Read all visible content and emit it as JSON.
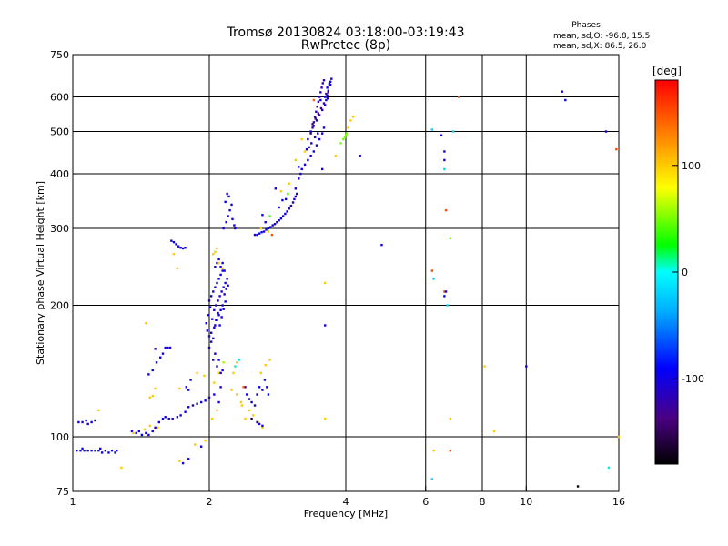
{
  "chart_data": {
    "type": "scatter",
    "title": "Tromsø 20130824 03:18:00-03:19:43",
    "subtitle": "RwPretec (8p)",
    "xlabel": "Frequency [MHz]",
    "ylabel": "Stationary phase Virtual Height [km]",
    "x_scale": "log",
    "y_scale": "log",
    "xlim": [
      1,
      16
    ],
    "ylim": [
      75,
      750
    ],
    "x_ticks": [
      1,
      2,
      4,
      6,
      8,
      10,
      16
    ],
    "x_tick_labels": [
      "1",
      "2",
      "4",
      "6",
      "8",
      "10",
      "16"
    ],
    "y_ticks": [
      75,
      100,
      200,
      300,
      400,
      500,
      600,
      750
    ],
    "y_tick_labels": [
      "75",
      "100",
      "200",
      "300",
      "400",
      "500",
      "600",
      "750"
    ],
    "grid": true,
    "phases_header": "Phases",
    "phases_stats": [
      "mean, sd,O: -96.8, 15.5",
      "mean, sd,X:  86.5, 26.0"
    ],
    "colorbar": {
      "label": "[deg]",
      "range": [
        -180,
        180
      ],
      "ticks": [
        100,
        0,
        -100
      ],
      "tick_labels": [
        "100",
        "0",
        "-100"
      ]
    },
    "points": [
      [
        1.03,
        108,
        -100
      ],
      [
        1.05,
        108,
        -105
      ],
      [
        1.07,
        109,
        -100
      ],
      [
        1.1,
        108,
        -100
      ],
      [
        1.12,
        109,
        -100
      ],
      [
        1.08,
        107,
        -105
      ],
      [
        1.02,
        93,
        -100
      ],
      [
        1.04,
        93,
        -100
      ],
      [
        1.06,
        93,
        -100
      ],
      [
        1.08,
        93,
        -102
      ],
      [
        1.1,
        93,
        -100
      ],
      [
        1.12,
        93,
        -100
      ],
      [
        1.14,
        93,
        -101
      ],
      [
        1.16,
        92,
        -100
      ],
      [
        1.18,
        93,
        -100
      ],
      [
        1.2,
        92,
        -100
      ],
      [
        1.22,
        93,
        -100
      ],
      [
        1.24,
        92,
        -100
      ],
      [
        1.05,
        94,
        -100
      ],
      [
        1.15,
        94,
        -100
      ],
      [
        1.25,
        93,
        -100
      ],
      [
        1.14,
        115,
        100
      ],
      [
        1.28,
        85,
        100
      ],
      [
        1.35,
        103,
        -100
      ],
      [
        1.38,
        102,
        -100
      ],
      [
        1.4,
        103,
        -100
      ],
      [
        1.42,
        101,
        -100
      ],
      [
        1.45,
        102,
        -100
      ],
      [
        1.47,
        101,
        -100
      ],
      [
        1.5,
        103,
        -100
      ],
      [
        1.52,
        105,
        -100
      ],
      [
        1.55,
        108,
        -100
      ],
      [
        1.58,
        110,
        -100
      ],
      [
        1.6,
        111,
        -100
      ],
      [
        1.63,
        110,
        -100
      ],
      [
        1.66,
        110,
        -100
      ],
      [
        1.7,
        111,
        -100
      ],
      [
        1.73,
        112,
        -100
      ],
      [
        1.77,
        114,
        -100
      ],
      [
        1.8,
        117,
        -100
      ],
      [
        1.84,
        118,
        -100
      ],
      [
        1.88,
        119,
        -100
      ],
      [
        1.92,
        120,
        -100
      ],
      [
        1.96,
        121,
        -100
      ],
      [
        2.0,
        123,
        -100
      ],
      [
        1.44,
        104,
        100
      ],
      [
        1.36,
        102,
        100
      ],
      [
        1.48,
        106,
        100
      ],
      [
        1.54,
        105,
        100
      ],
      [
        1.47,
        139,
        -100
      ],
      [
        1.5,
        142,
        -100
      ],
      [
        1.53,
        148,
        -100
      ],
      [
        1.56,
        152,
        -100
      ],
      [
        1.58,
        155,
        -100
      ],
      [
        1.6,
        160,
        -100
      ],
      [
        1.62,
        160,
        -100
      ],
      [
        1.64,
        160,
        -100
      ],
      [
        1.52,
        159,
        -100
      ],
      [
        1.45,
        182,
        100
      ],
      [
        1.48,
        123,
        100
      ],
      [
        1.5,
        124,
        100
      ],
      [
        1.52,
        129,
        100
      ],
      [
        1.72,
        129,
        100
      ],
      [
        1.65,
        281,
        -100
      ],
      [
        1.67,
        279,
        -100
      ],
      [
        1.69,
        276,
        -100
      ],
      [
        1.71,
        273,
        -100
      ],
      [
        1.73,
        271,
        -100
      ],
      [
        1.75,
        270,
        -100
      ],
      [
        1.77,
        271,
        -100
      ],
      [
        1.67,
        262,
        100
      ],
      [
        1.7,
        243,
        100
      ],
      [
        1.78,
        130,
        -100
      ],
      [
        1.8,
        128,
        -100
      ],
      [
        1.82,
        135,
        -100
      ],
      [
        1.88,
        140,
        100
      ],
      [
        1.95,
        138,
        100
      ],
      [
        2.05,
        133,
        100
      ],
      [
        2.1,
        140,
        100
      ],
      [
        1.75,
        87,
        -100
      ],
      [
        1.8,
        89,
        -100
      ],
      [
        1.92,
        95,
        -100
      ],
      [
        1.86,
        96,
        100
      ],
      [
        1.96,
        98,
        100
      ],
      [
        1.72,
        88,
        100
      ],
      [
        2.04,
        262,
        100
      ],
      [
        2.06,
        265,
        100
      ],
      [
        2.08,
        270,
        100
      ],
      [
        1.98,
        175,
        -100
      ],
      [
        2.0,
        170,
        -100
      ],
      [
        2.02,
        173,
        -100
      ],
      [
        2.04,
        168,
        -100
      ],
      [
        2.06,
        180,
        -100
      ],
      [
        2.08,
        185,
        -100
      ],
      [
        2.1,
        190,
        -100
      ],
      [
        2.12,
        195,
        -100
      ],
      [
        2.14,
        200,
        -100
      ],
      [
        1.97,
        182,
        -100
      ],
      [
        2.0,
        205,
        -100
      ],
      [
        2.02,
        210,
        -100
      ],
      [
        2.04,
        215,
        -100
      ],
      [
        2.06,
        220,
        -100
      ],
      [
        2.08,
        225,
        -100
      ],
      [
        2.1,
        230,
        -100
      ],
      [
        2.12,
        235,
        -100
      ],
      [
        2.14,
        240,
        -100
      ],
      [
        2.16,
        212,
        -100
      ],
      [
        2.18,
        218,
        -100
      ],
      [
        2.2,
        222,
        -100
      ],
      [
        2.05,
        195,
        -110
      ],
      [
        2.07,
        200,
        -110
      ],
      [
        2.09,
        205,
        -110
      ],
      [
        2.11,
        210,
        -110
      ],
      [
        2.13,
        215,
        -110
      ],
      [
        2.15,
        220,
        -110
      ],
      [
        2.17,
        225,
        -110
      ],
      [
        2.19,
        230,
        -110
      ],
      [
        1.99,
        190,
        -100
      ],
      [
        2.01,
        198,
        -100
      ],
      [
        2.03,
        186,
        -100
      ],
      [
        2.05,
        178,
        -100
      ],
      [
        2.07,
        185,
        -100
      ],
      [
        2.09,
        192,
        -100
      ],
      [
        2.11,
        180,
        -100
      ],
      [
        2.13,
        188,
        -100
      ],
      [
        2.15,
        196,
        -100
      ],
      [
        2.17,
        204,
        -100
      ],
      [
        2.0,
        160,
        -100
      ],
      [
        2.02,
        165,
        -100
      ],
      [
        2.04,
        150,
        -100
      ],
      [
        2.06,
        155,
        -100
      ],
      [
        2.08,
        145,
        -100
      ],
      [
        2.1,
        150,
        -100
      ],
      [
        2.12,
        140,
        -100
      ],
      [
        2.14,
        142,
        -100
      ],
      [
        2.05,
        125,
        -100
      ],
      [
        2.1,
        120,
        -100
      ],
      [
        2.12,
        130,
        -100
      ],
      [
        2.08,
        115,
        100
      ],
      [
        2.03,
        110,
        100
      ],
      [
        2.06,
        245,
        -100
      ],
      [
        2.08,
        250,
        -100
      ],
      [
        2.1,
        255,
        -100
      ],
      [
        2.12,
        245,
        -100
      ],
      [
        2.14,
        250,
        -100
      ],
      [
        2.16,
        240,
        -100
      ],
      [
        2.15,
        300,
        -100
      ],
      [
        2.18,
        310,
        -100
      ],
      [
        2.2,
        320,
        -100
      ],
      [
        2.22,
        330,
        -100
      ],
      [
        2.24,
        340,
        -100
      ],
      [
        2.17,
        345,
        -100
      ],
      [
        2.19,
        360,
        -100
      ],
      [
        2.21,
        355,
        -100
      ],
      [
        2.25,
        315,
        -100
      ],
      [
        2.27,
        305,
        -100
      ],
      [
        2.28,
        300,
        -100
      ],
      [
        2.1,
        250,
        100
      ],
      [
        2.14,
        243,
        100
      ],
      [
        2.3,
        148,
        100
      ],
      [
        2.26,
        140,
        100
      ],
      [
        2.35,
        120,
        100
      ],
      [
        2.28,
        145,
        10
      ],
      [
        2.33,
        150,
        -10
      ],
      [
        2.15,
        148,
        60
      ],
      [
        2.24,
        128,
        100
      ],
      [
        2.3,
        125,
        100
      ],
      [
        2.36,
        118,
        100
      ],
      [
        2.4,
        130,
        -100
      ],
      [
        2.42,
        125,
        -100
      ],
      [
        2.45,
        122,
        -100
      ],
      [
        2.48,
        120,
        -100
      ],
      [
        2.52,
        118,
        -100
      ],
      [
        2.55,
        125,
        -100
      ],
      [
        2.58,
        130,
        -100
      ],
      [
        2.62,
        128,
        -100
      ],
      [
        2.65,
        135,
        -100
      ],
      [
        2.68,
        130,
        -100
      ],
      [
        2.7,
        125,
        -100
      ],
      [
        2.45,
        115,
        100
      ],
      [
        2.5,
        112,
        100
      ],
      [
        2.56,
        108,
        100
      ],
      [
        2.62,
        105,
        100
      ],
      [
        2.4,
        110,
        100
      ],
      [
        2.6,
        140,
        100
      ],
      [
        2.72,
        150,
        100
      ],
      [
        2.66,
        146,
        100
      ],
      [
        2.55,
        108,
        -100
      ],
      [
        2.58,
        107,
        -100
      ],
      [
        2.62,
        106,
        -100
      ],
      [
        2.38,
        130,
        150
      ],
      [
        2.48,
        110,
        -160
      ],
      [
        2.52,
        290,
        -100
      ],
      [
        2.55,
        290,
        -100
      ],
      [
        2.58,
        292,
        -100
      ],
      [
        2.61,
        294,
        -100
      ],
      [
        2.64,
        295,
        -100
      ],
      [
        2.67,
        298,
        -100
      ],
      [
        2.7,
        300,
        -100
      ],
      [
        2.73,
        302,
        -100
      ],
      [
        2.76,
        305,
        -100
      ],
      [
        2.79,
        307,
        -100
      ],
      [
        2.82,
        310,
        -100
      ],
      [
        2.85,
        313,
        -100
      ],
      [
        2.88,
        316,
        -100
      ],
      [
        2.91,
        320,
        -100
      ],
      [
        2.94,
        324,
        -100
      ],
      [
        2.97,
        328,
        -100
      ],
      [
        3.0,
        333,
        -100
      ],
      [
        3.03,
        338,
        -100
      ],
      [
        3.06,
        344,
        -100
      ],
      [
        3.08,
        350,
        -100
      ],
      [
        3.1,
        355,
        -100
      ],
      [
        3.12,
        360,
        -100
      ],
      [
        2.6,
        300,
        100
      ],
      [
        2.7,
        295,
        100
      ],
      [
        2.75,
        290,
        150
      ],
      [
        2.62,
        322,
        -100
      ],
      [
        2.66,
        310,
        -110
      ],
      [
        2.72,
        320,
        40
      ],
      [
        2.85,
        335,
        -100
      ],
      [
        2.9,
        348,
        -100
      ],
      [
        2.95,
        350,
        -100
      ],
      [
        2.8,
        370,
        -100
      ],
      [
        2.88,
        365,
        100
      ],
      [
        2.98,
        360,
        40
      ],
      [
        3.0,
        380,
        100
      ],
      [
        3.1,
        370,
        -100
      ],
      [
        3.15,
        390,
        -100
      ],
      [
        3.18,
        400,
        -100
      ],
      [
        3.2,
        410,
        -100
      ],
      [
        3.25,
        420,
        -100
      ],
      [
        3.3,
        430,
        -100
      ],
      [
        3.35,
        440,
        -100
      ],
      [
        3.4,
        450,
        -100
      ],
      [
        3.45,
        465,
        -100
      ],
      [
        3.5,
        480,
        -100
      ],
      [
        3.55,
        495,
        -100
      ],
      [
        3.58,
        510,
        -100
      ],
      [
        3.3,
        480,
        -120
      ],
      [
        3.35,
        495,
        -120
      ],
      [
        3.38,
        510,
        -120
      ],
      [
        3.4,
        525,
        -120
      ],
      [
        3.42,
        540,
        -120
      ],
      [
        3.44,
        555,
        -120
      ],
      [
        3.46,
        570,
        -120
      ],
      [
        3.48,
        585,
        -120
      ],
      [
        3.5,
        600,
        -120
      ],
      [
        3.52,
        615,
        -120
      ],
      [
        3.54,
        630,
        -120
      ],
      [
        3.56,
        645,
        -120
      ],
      [
        3.58,
        655,
        -120
      ],
      [
        3.35,
        500,
        -100
      ],
      [
        3.4,
        515,
        -100
      ],
      [
        3.45,
        530,
        -100
      ],
      [
        3.5,
        545,
        -100
      ],
      [
        3.55,
        560,
        -100
      ],
      [
        3.6,
        575,
        -100
      ],
      [
        3.62,
        590,
        -100
      ],
      [
        3.64,
        605,
        -100
      ],
      [
        3.66,
        620,
        -100
      ],
      [
        3.68,
        640,
        -100
      ],
      [
        3.7,
        650,
        -100
      ],
      [
        3.72,
        660,
        -100
      ],
      [
        3.38,
        520,
        -140
      ],
      [
        3.43,
        535,
        -140
      ],
      [
        3.48,
        550,
        -140
      ],
      [
        3.53,
        565,
        -140
      ],
      [
        3.58,
        580,
        -140
      ],
      [
        3.62,
        600,
        -140
      ],
      [
        3.66,
        615,
        -140
      ],
      [
        3.25,
        450,
        100
      ],
      [
        3.28,
        455,
        -100
      ],
      [
        3.32,
        460,
        -100
      ],
      [
        3.36,
        470,
        -100
      ],
      [
        3.42,
        485,
        -100
      ],
      [
        3.47,
        495,
        -100
      ],
      [
        3.6,
        600,
        -100
      ],
      [
        3.64,
        630,
        -100
      ],
      [
        3.68,
        645,
        -100
      ],
      [
        3.62,
        610,
        -120
      ],
      [
        3.52,
        590,
        -100
      ],
      [
        3.4,
        590,
        140
      ],
      [
        3.2,
        480,
        100
      ],
      [
        3.1,
        430,
        100
      ],
      [
        3.15,
        415,
        -100
      ],
      [
        3.55,
        410,
        -100
      ],
      [
        3.65,
        595,
        -100
      ],
      [
        3.7,
        640,
        -100
      ],
      [
        3.8,
        440,
        100
      ],
      [
        3.9,
        470,
        50
      ],
      [
        3.95,
        480,
        50
      ],
      [
        3.98,
        485,
        50
      ],
      [
        4.0,
        490,
        50
      ],
      [
        4.02,
        495,
        50
      ],
      [
        4.05,
        510,
        100
      ],
      [
        4.1,
        530,
        100
      ],
      [
        4.15,
        540,
        100
      ],
      [
        3.6,
        225,
        100
      ],
      [
        3.6,
        180,
        -100
      ],
      [
        3.6,
        110,
        100
      ],
      [
        4.3,
        440,
        -100
      ],
      [
        4.8,
        275,
        -100
      ],
      [
        6.2,
        505,
        -20
      ],
      [
        6.2,
        240,
        150
      ],
      [
        6.25,
        230,
        -20
      ],
      [
        6.2,
        80,
        -20
      ],
      [
        6.25,
        93,
        100
      ],
      [
        6.5,
        490,
        -100
      ],
      [
        6.6,
        450,
        -100
      ],
      [
        6.6,
        430,
        -100
      ],
      [
        6.6,
        410,
        -20
      ],
      [
        6.65,
        330,
        150
      ],
      [
        6.6,
        215,
        150
      ],
      [
        6.6,
        210,
        -100
      ],
      [
        6.7,
        200,
        -20
      ],
      [
        6.8,
        285,
        50
      ],
      [
        6.8,
        110,
        100
      ],
      [
        6.8,
        93,
        150
      ],
      [
        6.9,
        500,
        -20
      ],
      [
        6.65,
        215,
        -100
      ],
      [
        7.1,
        600,
        150
      ],
      [
        8.1,
        145,
        100
      ],
      [
        8.5,
        103,
        100
      ],
      [
        10.0,
        145,
        -100
      ],
      [
        12.0,
        617,
        -100
      ],
      [
        12.2,
        590,
        -100
      ],
      [
        13.0,
        77,
        -175
      ],
      [
        15.0,
        500,
        -100
      ],
      [
        15.2,
        85,
        -10
      ],
      [
        15.8,
        455,
        150
      ],
      [
        16.0,
        100,
        100
      ]
    ]
  }
}
